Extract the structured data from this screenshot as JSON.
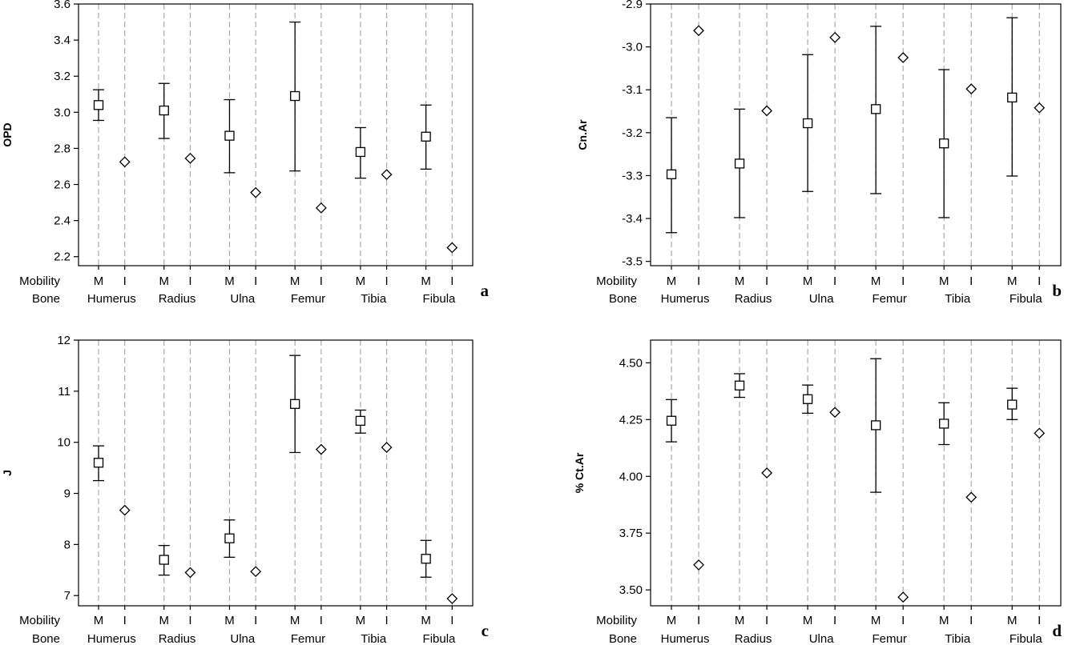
{
  "chart_data": [
    {
      "type": "interval",
      "panel_letter": "a",
      "title": "",
      "ylabel": "OPD",
      "ylim": [
        2.15,
        3.6
      ],
      "yticks": [
        2.2,
        2.4,
        2.6,
        2.8,
        3.0,
        3.2,
        3.4,
        3.6
      ],
      "ytick_labels": [
        "2.2",
        "2.4",
        "2.6",
        "2.8",
        "3.0",
        "3.2",
        "3.4",
        "3.6"
      ],
      "row_labels": {
        "mobility": "Mobility",
        "bone": "Bone"
      },
      "bones": [
        "Humerus",
        "Radius",
        "Ulna",
        "Femur",
        "Tibia",
        "Fibula"
      ],
      "mobility_codes": [
        "M",
        "I"
      ],
      "series": [
        {
          "mobility": "M",
          "marker": "square",
          "means": [
            3.04,
            3.01,
            2.87,
            3.09,
            2.78,
            2.865
          ],
          "lower": [
            2.955,
            2.855,
            2.665,
            2.675,
            2.635,
            2.685
          ],
          "upper": [
            3.125,
            3.16,
            3.07,
            3.5,
            2.915,
            3.04
          ]
        },
        {
          "mobility": "I",
          "marker": "diamond",
          "means": [
            2.725,
            2.745,
            2.555,
            2.47,
            2.655,
            2.25
          ]
        }
      ],
      "grid": "dashed vertical lines at each category"
    },
    {
      "type": "interval",
      "panel_letter": "b",
      "title": "",
      "ylabel": "Cn.Ar",
      "ylim": [
        -3.51,
        -2.9
      ],
      "yticks": [
        -3.5,
        -3.4,
        -3.3,
        -3.2,
        -3.1,
        -3.0,
        -2.9
      ],
      "ytick_labels": [
        "-3.5",
        "-3.4",
        "-3.3",
        "-3.2",
        "-3.1",
        "-3.0",
        "-2.9"
      ],
      "row_labels": {
        "mobility": "Mobility",
        "bone": "Bone"
      },
      "bones": [
        "Humerus",
        "Radius",
        "Ulna",
        "Femur",
        "Tibia",
        "Fibula"
      ],
      "mobility_codes": [
        "M",
        "I"
      ],
      "series": [
        {
          "mobility": "M",
          "marker": "square",
          "means": [
            -3.297,
            -3.272,
            -3.178,
            -3.145,
            -3.225,
            -3.118
          ],
          "lower": [
            -3.433,
            -3.398,
            -3.337,
            -3.342,
            -3.398,
            -3.301
          ],
          "upper": [
            -3.165,
            -3.145,
            -3.018,
            -2.952,
            -3.053,
            -2.932
          ]
        },
        {
          "mobility": "I",
          "marker": "diamond",
          "means": [
            -2.962,
            -3.149,
            -2.978,
            -3.025,
            -3.098,
            -3.142
          ]
        }
      ],
      "grid": "dashed vertical lines at each category"
    },
    {
      "type": "interval",
      "panel_letter": "c",
      "title": "",
      "ylabel": "J",
      "ylim": [
        6.8,
        12.0
      ],
      "yticks": [
        7,
        8,
        9,
        10,
        11,
        12
      ],
      "ytick_labels": [
        "7",
        "8",
        "9",
        "10",
        "11",
        "12"
      ],
      "row_labels": {
        "mobility": "Mobility",
        "bone": "Bone"
      },
      "bones": [
        "Humerus",
        "Radius",
        "Ulna",
        "Femur",
        "Tibia",
        "Fibula"
      ],
      "mobility_codes": [
        "M",
        "I"
      ],
      "series": [
        {
          "mobility": "M",
          "marker": "square",
          "means": [
            9.6,
            7.7,
            8.12,
            10.75,
            10.42,
            7.72
          ],
          "lower": [
            9.25,
            7.4,
            7.75,
            9.8,
            10.18,
            7.36
          ],
          "upper": [
            9.93,
            7.98,
            8.48,
            11.7,
            10.63,
            8.08
          ]
        },
        {
          "mobility": "I",
          "marker": "diamond",
          "means": [
            8.67,
            7.45,
            7.47,
            9.86,
            9.9,
            6.94
          ]
        }
      ],
      "grid": "dashed vertical lines at each category"
    },
    {
      "type": "interval",
      "panel_letter": "d",
      "title": "",
      "ylabel": "% Ct.Ar",
      "ylim": [
        3.43,
        4.6
      ],
      "yticks": [
        3.5,
        3.75,
        4.0,
        4.25,
        4.5
      ],
      "ytick_labels": [
        "3.50",
        "3.75",
        "4.00",
        "4.25",
        "4.50"
      ],
      "row_labels": {
        "mobility": "Mobility",
        "bone": "Bone"
      },
      "bones": [
        "Humerus",
        "Radius",
        "Ulna",
        "Femur",
        "Tibia",
        "Fibula"
      ],
      "mobility_codes": [
        "M",
        "I"
      ],
      "series": [
        {
          "mobility": "M",
          "marker": "square",
          "means": [
            4.245,
            4.4,
            4.34,
            4.225,
            4.232,
            4.316
          ],
          "lower": [
            4.152,
            4.348,
            4.278,
            3.93,
            4.14,
            4.25
          ],
          "upper": [
            4.338,
            4.452,
            4.402,
            4.518,
            4.324,
            4.388
          ]
        },
        {
          "mobility": "I",
          "marker": "diamond",
          "means": [
            3.61,
            4.015,
            4.282,
            3.468,
            3.908,
            4.19
          ]
        }
      ],
      "grid": "dashed vertical lines at each category"
    }
  ]
}
